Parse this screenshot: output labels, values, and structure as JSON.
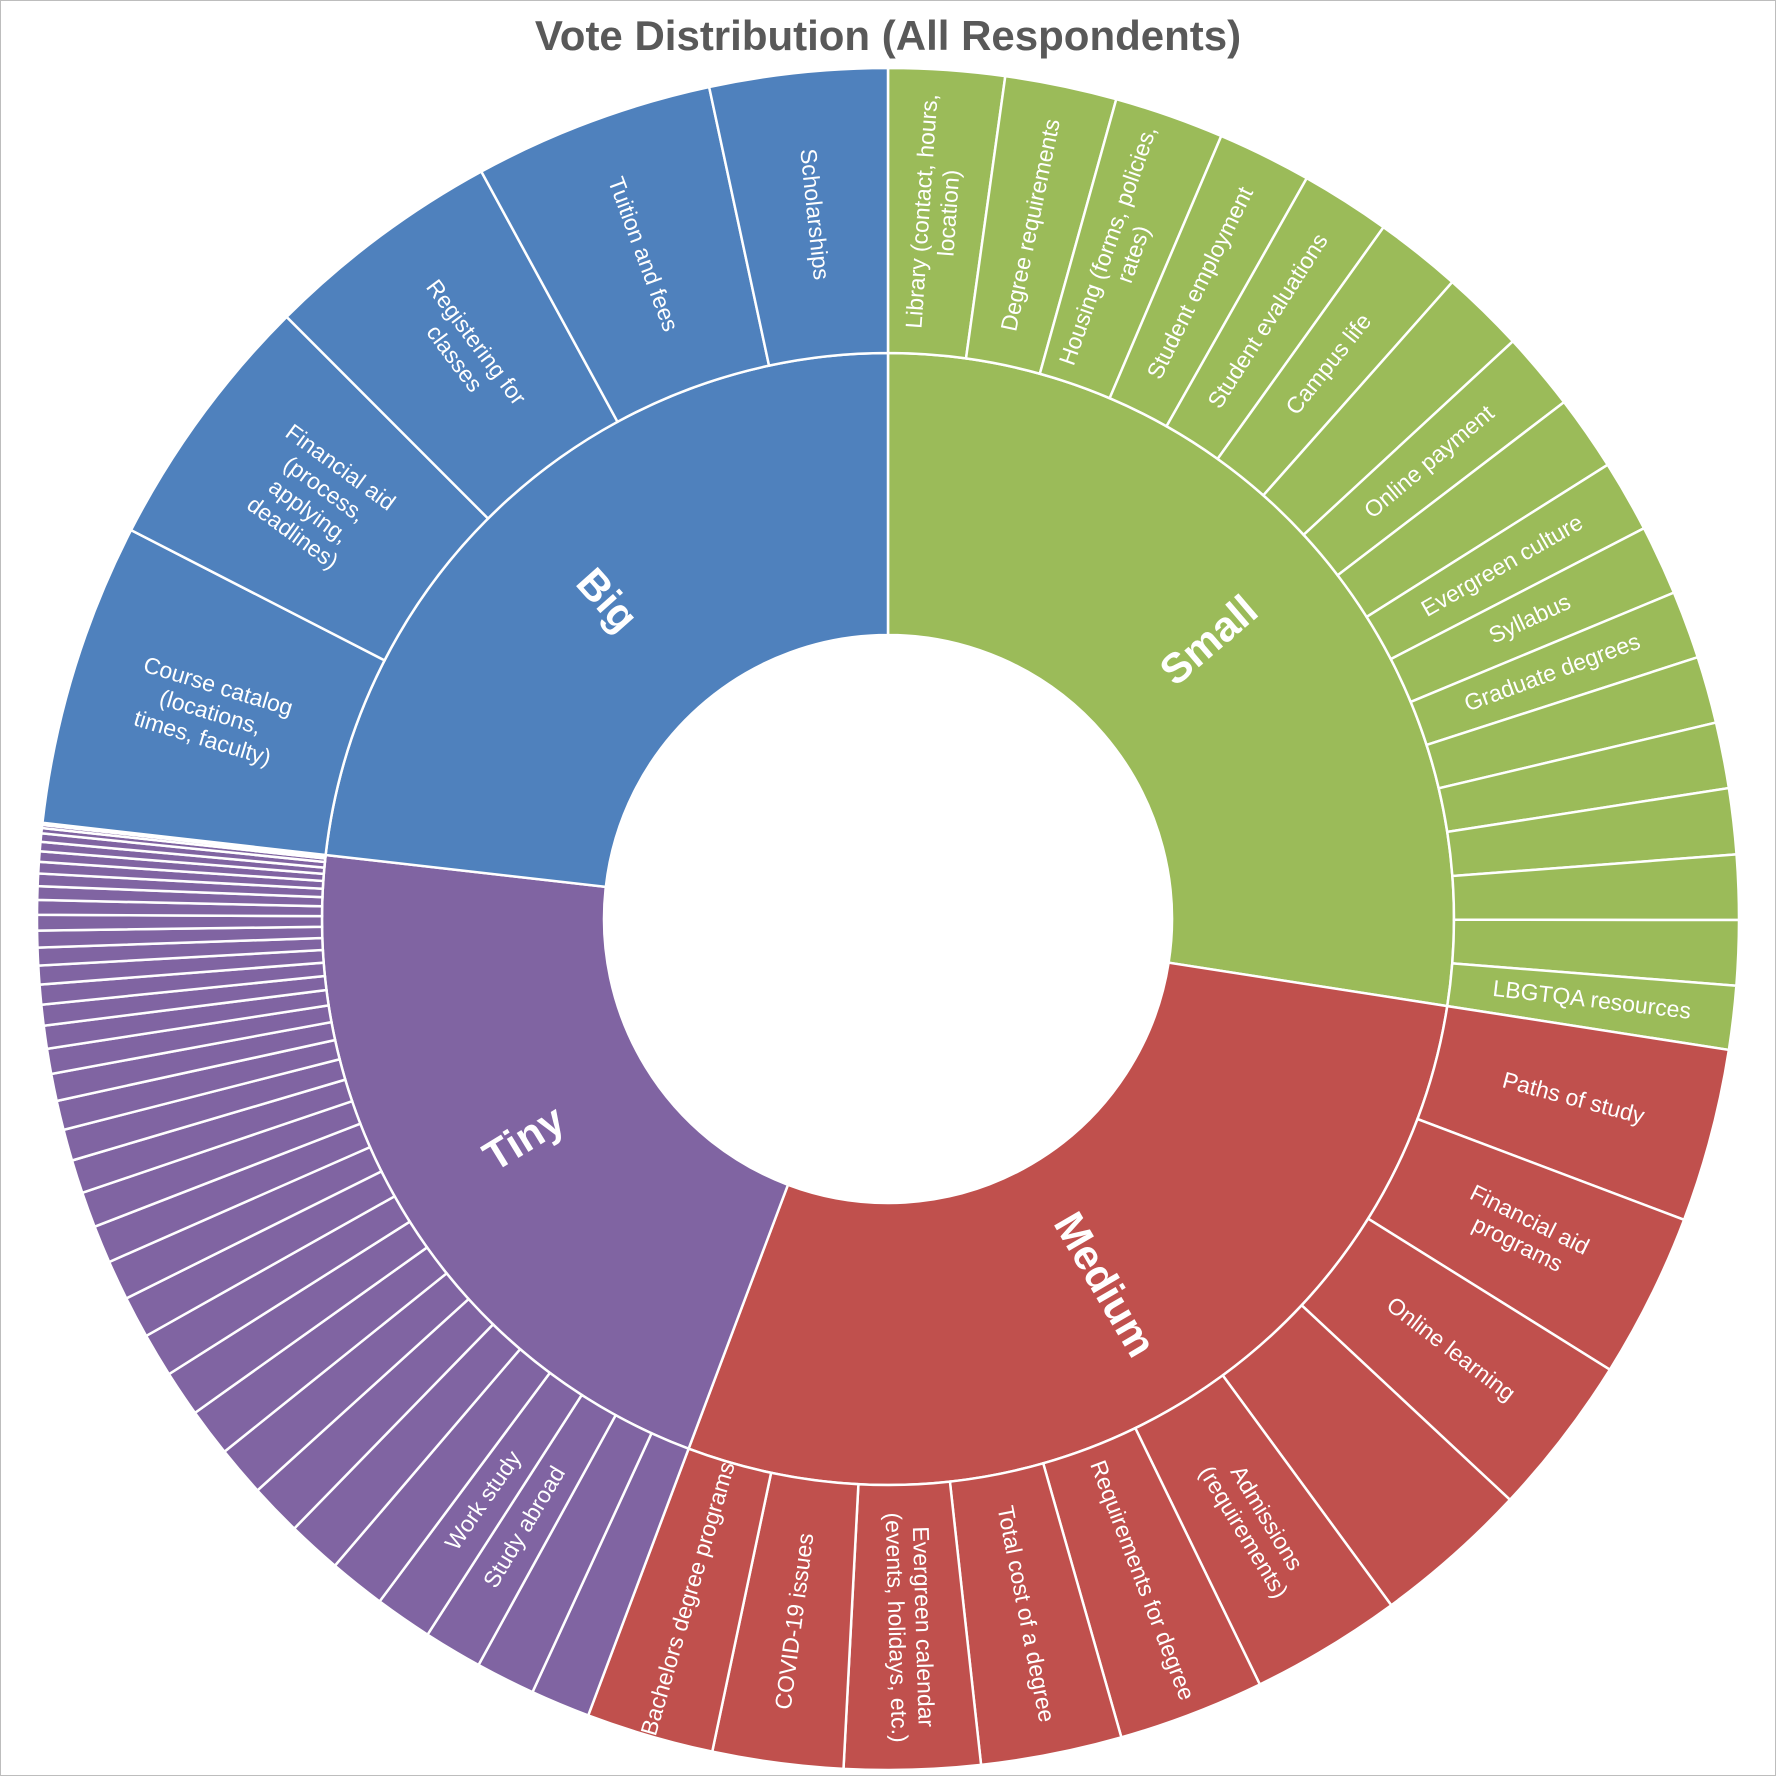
{
  "chart_data": {
    "type": "sunburst",
    "title": "Vote Distribution (All Respondents)",
    "colors": {
      "Small": "#9bbb59",
      "Medium": "#c0504d",
      "Tiny": "#8064a2",
      "Big": "#4f81bd"
    },
    "groups": [
      {
        "name": "Small",
        "children": [
          {
            "label": "Library (contact, hours, location)",
            "value": 111
          },
          {
            "label": "Degree requirements",
            "value": 107
          },
          {
            "label": "Housing (forms, policies, rates)",
            "value": 105
          },
          {
            "label": "Student employment",
            "value": 90
          },
          {
            "label": "Student evaluations",
            "value": 86
          },
          {
            "label": "Campus life",
            "value": 83
          },
          {
            "label": "",
            "value": 80
          },
          {
            "label": "Online payment",
            "value": 75
          },
          {
            "label": "",
            "value": 72
          },
          {
            "label": "Evergreen culture",
            "value": 69
          },
          {
            "label": "Syllabus",
            "value": 67
          },
          {
            "label": "Graduate degrees",
            "value": 65
          },
          {
            "label": "",
            "value": 64
          },
          {
            "label": "",
            "value": 63
          },
          {
            "label": "",
            "value": 63
          },
          {
            "label": "",
            "value": 62
          },
          {
            "label": "",
            "value": 62
          },
          {
            "label": "LBGTQA resources",
            "value": 61
          }
        ]
      },
      {
        "name": "Medium",
        "children": [
          {
            "label": "Paths of study",
            "value": 166
          },
          {
            "label": "Financial aid programs",
            "value": 158
          },
          {
            "label": "Online learning",
            "value": 155
          },
          {
            "label": "",
            "value": 150
          },
          {
            "label": "Admissions (requirements)",
            "value": 145
          },
          {
            "label": "Requirements for degree",
            "value": 140
          },
          {
            "label": "Total cost of a degree",
            "value": 135
          },
          {
            "label": "Evergreen calendar (events, holidays, etc.)",
            "value": 130
          },
          {
            "label": "COVID-19 issues",
            "value": 125
          },
          {
            "label": "Bachelors degree programs",
            "value": 122
          }
        ]
      },
      {
        "name": "Tiny",
        "children": [
          {
            "label": "",
            "value": 57
          },
          {
            "label": "",
            "value": 57
          },
          {
            "label": "Study abroad",
            "value": 56
          },
          {
            "label": "Work study",
            "value": 55
          },
          {
            "label": "",
            "value": 54
          },
          {
            "label": "",
            "value": 52
          },
          {
            "label": "",
            "value": 50
          },
          {
            "label": "",
            "value": 48
          },
          {
            "label": "",
            "value": 46
          },
          {
            "label": "",
            "value": 44
          },
          {
            "label": "",
            "value": 42
          },
          {
            "label": "",
            "value": 40
          },
          {
            "label": "",
            "value": 38
          },
          {
            "label": "",
            "value": 36
          },
          {
            "label": "",
            "value": 34
          },
          {
            "label": "",
            "value": 32
          },
          {
            "label": "",
            "value": 30
          },
          {
            "label": "",
            "value": 28
          },
          {
            "label": "",
            "value": 26
          },
          {
            "label": "",
            "value": 24
          },
          {
            "label": "",
            "value": 22
          },
          {
            "label": "",
            "value": 20
          },
          {
            "label": "",
            "value": 19
          },
          {
            "label": "",
            "value": 18
          },
          {
            "label": "",
            "value": 17
          },
          {
            "label": "",
            "value": 16
          },
          {
            "label": "",
            "value": 15
          },
          {
            "label": "",
            "value": 14
          },
          {
            "label": "",
            "value": 13
          },
          {
            "label": "",
            "value": 12
          },
          {
            "label": "",
            "value": 11
          },
          {
            "label": "",
            "value": 10
          },
          {
            "label": "",
            "value": 9
          },
          {
            "label": "",
            "value": 8
          },
          {
            "label": "",
            "value": 5
          },
          {
            "label": "",
            "value": 3
          },
          {
            "label": "",
            "value": 2
          }
        ]
      },
      {
        "name": "Big",
        "children": [
          {
            "label": "Course catalog (locations, times, faculty)",
            "value": 290
          },
          {
            "label": "Financial aid (process, applying, deadlines)",
            "value": 250
          },
          {
            "label": "Registering for classes",
            "value": 230
          },
          {
            "label": "Tuition and fees",
            "value": 230
          },
          {
            "label": "Scholarships",
            "value": 170
          }
        ]
      }
    ]
  }
}
